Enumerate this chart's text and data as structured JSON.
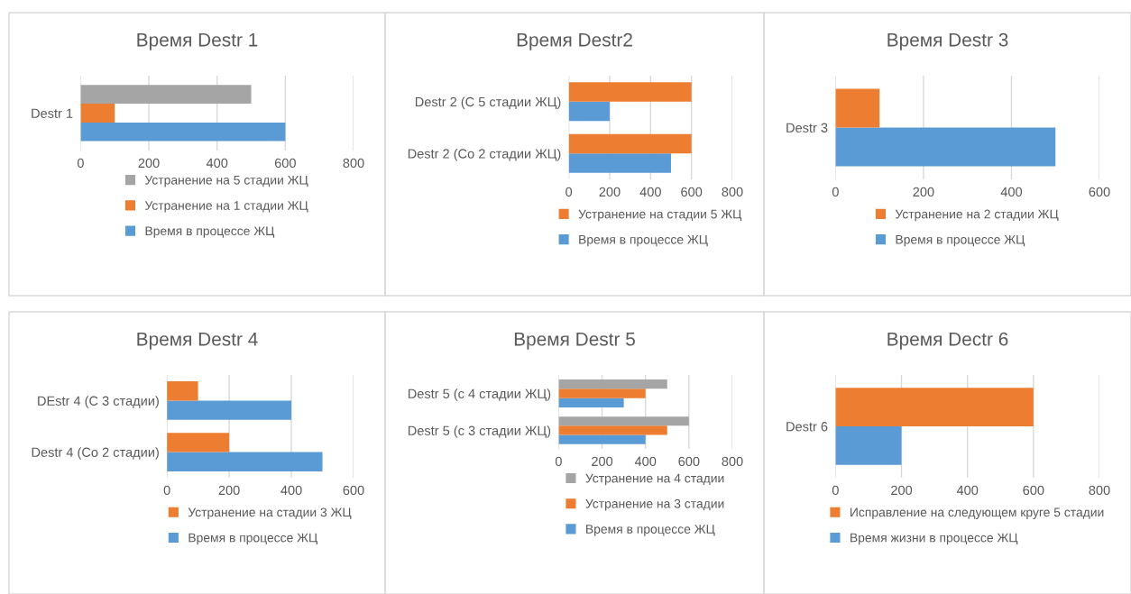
{
  "chart_data": [
    {
      "type": "bar",
      "orientation": "horizontal",
      "title": "Время Destr 1",
      "categories": [
        "Destr 1"
      ],
      "series": [
        {
          "name": "Время в процессе ЖЦ",
          "color": "#5b9bd5",
          "values": [
            600
          ]
        },
        {
          "name": "Устранение на 1 стадии ЖЦ",
          "color": "#ed7d31",
          "values": [
            100
          ]
        },
        {
          "name": "Устранение на 5 стадии ЖЦ",
          "color": "#a5a5a5",
          "values": [
            500
          ]
        }
      ],
      "xlim": [
        0,
        800
      ],
      "xticks": [
        0,
        200,
        400,
        600,
        800
      ],
      "grid": "x",
      "legend": "bottom"
    },
    {
      "type": "bar",
      "orientation": "horizontal",
      "title": "Время Destr2",
      "categories": [
        "Destr 2 (С 5 стадии ЖЦ)",
        "Destr 2 (Со 2 стадии ЖЦ)"
      ],
      "series": [
        {
          "name": "Время в процессе ЖЦ",
          "color": "#5b9bd5",
          "values": [
            200,
            500
          ]
        },
        {
          "name": "Устранение на стадии 5 ЖЦ",
          "color": "#ed7d31",
          "values": [
            600,
            600
          ]
        }
      ],
      "xlim": [
        0,
        800
      ],
      "xticks": [
        0,
        200,
        400,
        600,
        800
      ],
      "grid": "x",
      "legend": "bottom"
    },
    {
      "type": "bar",
      "orientation": "horizontal",
      "title": "Время Destr 3",
      "categories": [
        "Destr 3"
      ],
      "series": [
        {
          "name": "Время в процессе ЖЦ",
          "color": "#5b9bd5",
          "values": [
            500
          ]
        },
        {
          "name": "Устранение на 2 стадии ЖЦ",
          "color": "#ed7d31",
          "values": [
            100
          ]
        }
      ],
      "xlim": [
        0,
        600
      ],
      "xticks": [
        0,
        200,
        400,
        600
      ],
      "grid": "x",
      "legend": "bottom"
    },
    {
      "type": "bar",
      "orientation": "horizontal",
      "title": "Время Destr 4",
      "categories": [
        "DEstr 4 (С 3 стадии)",
        "Destr 4 (Со 2 стадии)"
      ],
      "series": [
        {
          "name": "Время в процессе ЖЦ",
          "color": "#5b9bd5",
          "values": [
            400,
            500
          ]
        },
        {
          "name": "Устранение на стадии 3 ЖЦ",
          "color": "#ed7d31",
          "values": [
            100,
            200
          ]
        }
      ],
      "xlim": [
        0,
        600
      ],
      "xticks": [
        0,
        200,
        400,
        600
      ],
      "grid": "x",
      "legend": "bottom"
    },
    {
      "type": "bar",
      "orientation": "horizontal",
      "title": "Время Destr 5",
      "categories": [
        "Destr 5 (с 4 стадии ЖЦ)",
        "Destr 5 (с 3 стадии ЖЦ)"
      ],
      "series": [
        {
          "name": "Время в процессе ЖЦ",
          "color": "#5b9bd5",
          "values": [
            300,
            400
          ]
        },
        {
          "name": "Устранение на 3 стадии",
          "color": "#ed7d31",
          "values": [
            400,
            500
          ]
        },
        {
          "name": "Устранение на 4 стадии",
          "color": "#a5a5a5",
          "values": [
            500,
            600
          ]
        }
      ],
      "xlim": [
        0,
        800
      ],
      "xticks": [
        0,
        200,
        400,
        600,
        800
      ],
      "grid": "x",
      "legend": "bottom"
    },
    {
      "type": "bar",
      "orientation": "horizontal",
      "title": "Время Dectr 6",
      "categories": [
        "Destr 6"
      ],
      "series": [
        {
          "name": "Время жизни в процессе ЖЦ",
          "color": "#5b9bd5",
          "values": [
            200
          ]
        },
        {
          "name": "Исправление на следующем круге 5 стадии",
          "color": "#ed7d31",
          "values": [
            600
          ]
        }
      ],
      "xlim": [
        0,
        800
      ],
      "xticks": [
        0,
        200,
        400,
        600,
        800
      ],
      "grid": "x",
      "legend": "bottom"
    }
  ]
}
